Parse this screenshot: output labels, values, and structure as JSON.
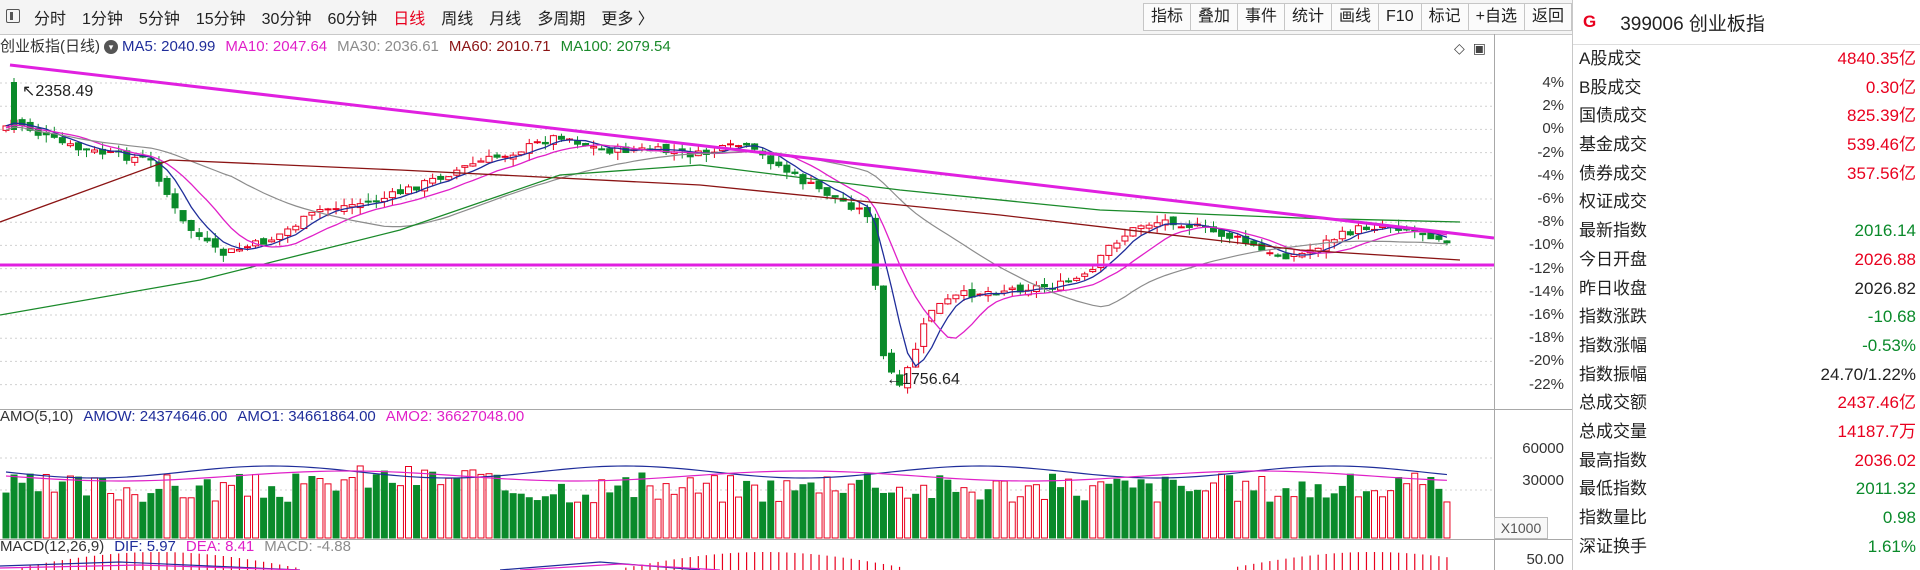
{
  "toolbar": {
    "periods": [
      "分时",
      "1分钟",
      "5分钟",
      "15分钟",
      "30分钟",
      "60分钟",
      "日线",
      "周线",
      "月线",
      "多周期",
      "更多 〉"
    ],
    "active_period": "日线",
    "tools": [
      "指标",
      "叠加",
      "事件",
      "统计",
      "画线",
      "F10",
      "标记",
      "+自选",
      "返回"
    ]
  },
  "main_chart": {
    "title": "创业板指(日线)",
    "ma": [
      {
        "label": "MA5: 2040.99",
        "color": "#1f2d9a"
      },
      {
        "label": "MA10: 2047.64",
        "color": "#e020c8"
      },
      {
        "label": "MA30: 2036.61",
        "color": "#8c8c8c"
      },
      {
        "label": "MA60: 2010.71",
        "color": "#8b1414"
      },
      {
        "label": "MA100: 2079.54",
        "color": "#1a8a2a"
      }
    ],
    "high_label": "2358.49",
    "low_label": "1756.64",
    "y_ticks": [
      "4%",
      "2%",
      "0%",
      "-2%",
      "-4%",
      "-6%",
      "-8%",
      "-10%",
      "-12%",
      "-14%",
      "-16%",
      "-18%",
      "-20%",
      "-22%"
    ]
  },
  "volume_chart": {
    "labels": [
      {
        "text": "AMO(5,10)",
        "color": "#333333"
      },
      {
        "text": "AMOW: 24374646.00",
        "color": "#1f2d9a"
      },
      {
        "text": "AMO1: 34661864.00",
        "color": "#1f2d9a"
      },
      {
        "text": "AMO2: 36627048.00",
        "color": "#e020c8"
      }
    ],
    "y_ticks": [
      "60000",
      "30000"
    ],
    "unit": "X1000"
  },
  "macd_chart": {
    "labels": [
      {
        "text": "MACD(12,26,9)",
        "color": "#333333"
      },
      {
        "text": "DIF: 5.97",
        "color": "#1f2d9a"
      },
      {
        "text": "DEA: 8.41",
        "color": "#e020c8"
      },
      {
        "text": "MACD: -4.88",
        "color": "#8c8c8c"
      }
    ],
    "y_ticks": [
      "50.00"
    ]
  },
  "panel": {
    "badge": "G",
    "title": "399006 创业板指",
    "rows": [
      {
        "k": "A股成交",
        "v": "4840.35亿",
        "c": "red"
      },
      {
        "k": "B股成交",
        "v": "0.30亿",
        "c": "red"
      },
      {
        "k": "国债成交",
        "v": "825.39亿",
        "c": "red"
      },
      {
        "k": "基金成交",
        "v": "539.46亿",
        "c": "red"
      },
      {
        "k": "债券成交",
        "v": "357.56亿",
        "c": "red"
      },
      {
        "k": "权证成交",
        "v": "",
        "c": "red"
      },
      {
        "k": "最新指数",
        "v": "2016.14",
        "c": "green"
      },
      {
        "k": "今日开盘",
        "v": "2026.88",
        "c": "red"
      },
      {
        "k": "昨日收盘",
        "v": "2026.82",
        "c": "blk"
      },
      {
        "k": "指数涨跌",
        "v": "-10.68",
        "c": "green"
      },
      {
        "k": "指数涨幅",
        "v": "-0.53%",
        "c": "green"
      },
      {
        "k": "指数振幅",
        "v": "24.70/1.22%",
        "c": "blk"
      },
      {
        "k": "总成交额",
        "v": "2437.46亿",
        "c": "red"
      },
      {
        "k": "总成交量",
        "v": "14187.7万",
        "c": "red"
      },
      {
        "k": "最高指数",
        "v": "2036.02",
        "c": "red"
      },
      {
        "k": "最低指数",
        "v": "2011.32",
        "c": "green"
      },
      {
        "k": "指数量比",
        "v": "0.98",
        "c": "green"
      },
      {
        "k": "深证换手",
        "v": "1.61%",
        "c": "green"
      }
    ]
  },
  "colors": {
    "up": "#e8001e",
    "down": "#0a8a2a",
    "trend": "#e020e0"
  }
}
